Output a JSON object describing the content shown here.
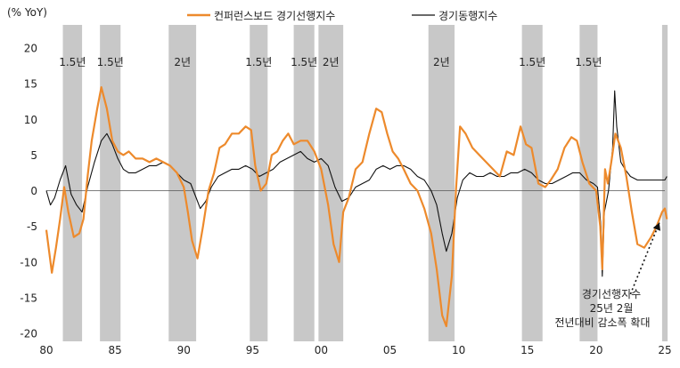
{
  "chart_data": {
    "type": "line",
    "unit_label": "(% YoY)",
    "ylim": [
      -20,
      20
    ],
    "yticks": [
      20,
      15,
      10,
      5,
      0,
      -5,
      -10,
      -15,
      -20
    ],
    "xlim": [
      1980,
      2025
    ],
    "xticks": [
      {
        "x": 1980,
        "label": "80"
      },
      {
        "x": 1985,
        "label": "85"
      },
      {
        "x": 1990,
        "label": "90"
      },
      {
        "x": 1995,
        "label": "95"
      },
      {
        "x": 2000,
        "label": "00"
      },
      {
        "x": 2005,
        "label": "05"
      },
      {
        "x": 2010,
        "label": "10"
      },
      {
        "x": 2015,
        "label": "15"
      },
      {
        "x": 2020,
        "label": "20"
      },
      {
        "x": 2025,
        "label": "25"
      }
    ],
    "recession_bands": [
      {
        "start": 1981.2,
        "end": 1982.6,
        "label": "1.5년"
      },
      {
        "start": 1983.9,
        "end": 1985.4,
        "label": "1.5년"
      },
      {
        "start": 1988.9,
        "end": 1990.9,
        "label": "2년"
      },
      {
        "start": 1994.8,
        "end": 1996.1,
        "label": "1.5년"
      },
      {
        "start": 1998.0,
        "end": 1999.5,
        "label": "1.5년"
      },
      {
        "start": 1999.8,
        "end": 2001.6,
        "label": "2년"
      },
      {
        "start": 2007.8,
        "end": 2009.7,
        "label": "2년"
      },
      {
        "start": 2014.6,
        "end": 2016.1,
        "label": "1.5년"
      },
      {
        "start": 2018.8,
        "end": 2020.1,
        "label": "1.5년"
      },
      {
        "start": 2024.8,
        "end": 2025.2,
        "label": ""
      }
    ],
    "series": [
      {
        "name": "컨퍼런스보드 경기선행지수",
        "color": "#ED8A2C",
        "points": [
          [
            1980.0,
            -5.5
          ],
          [
            1980.4,
            -11.5
          ],
          [
            1980.7,
            -8
          ],
          [
            1981.0,
            -4
          ],
          [
            1981.3,
            0.5
          ],
          [
            1981.6,
            -3
          ],
          [
            1982.0,
            -6.5
          ],
          [
            1982.4,
            -6
          ],
          [
            1982.7,
            -4
          ],
          [
            1983.0,
            2
          ],
          [
            1983.3,
            7
          ],
          [
            1983.7,
            11.5
          ],
          [
            1984.0,
            14.5
          ],
          [
            1984.4,
            11.5
          ],
          [
            1984.8,
            7
          ],
          [
            1985.2,
            5.5
          ],
          [
            1985.6,
            5
          ],
          [
            1986.0,
            5.5
          ],
          [
            1986.5,
            4.5
          ],
          [
            1987.0,
            4.5
          ],
          [
            1987.5,
            4
          ],
          [
            1988.0,
            4.5
          ],
          [
            1988.5,
            4
          ],
          [
            1989.0,
            3.5
          ],
          [
            1989.5,
            2.5
          ],
          [
            1990.0,
            0.5
          ],
          [
            1990.3,
            -3
          ],
          [
            1990.6,
            -7
          ],
          [
            1991.0,
            -9.5
          ],
          [
            1991.4,
            -5
          ],
          [
            1991.8,
            0
          ],
          [
            1992.2,
            2.5
          ],
          [
            1992.6,
            6
          ],
          [
            1993.0,
            6.5
          ],
          [
            1993.5,
            8
          ],
          [
            1994.0,
            8
          ],
          [
            1994.5,
            9
          ],
          [
            1994.9,
            8.5
          ],
          [
            1995.2,
            3.5
          ],
          [
            1995.6,
            0
          ],
          [
            1996.0,
            1
          ],
          [
            1996.4,
            5
          ],
          [
            1996.8,
            5.5
          ],
          [
            1997.2,
            7
          ],
          [
            1997.6,
            8
          ],
          [
            1998.0,
            6.5
          ],
          [
            1998.5,
            7
          ],
          [
            1999.0,
            7
          ],
          [
            1999.5,
            5.5
          ],
          [
            2000.0,
            3
          ],
          [
            2000.5,
            -2
          ],
          [
            2000.9,
            -7.5
          ],
          [
            2001.3,
            -10
          ],
          [
            2001.6,
            -3
          ],
          [
            2002.0,
            -1
          ],
          [
            2002.5,
            3
          ],
          [
            2003.0,
            4
          ],
          [
            2003.5,
            8
          ],
          [
            2004.0,
            11.5
          ],
          [
            2004.4,
            11
          ],
          [
            2004.8,
            8
          ],
          [
            2005.2,
            5.5
          ],
          [
            2005.6,
            4.5
          ],
          [
            2006.0,
            3
          ],
          [
            2006.5,
            1
          ],
          [
            2007.0,
            0
          ],
          [
            2007.5,
            -2.5
          ],
          [
            2008.0,
            -6
          ],
          [
            2008.4,
            -11
          ],
          [
            2008.8,
            -17.5
          ],
          [
            2009.1,
            -19
          ],
          [
            2009.5,
            -12
          ],
          [
            2009.8,
            0
          ],
          [
            2010.1,
            9
          ],
          [
            2010.5,
            8
          ],
          [
            2011.0,
            6
          ],
          [
            2011.5,
            5
          ],
          [
            2012.0,
            4
          ],
          [
            2012.5,
            3
          ],
          [
            2013.0,
            2
          ],
          [
            2013.5,
            5.5
          ],
          [
            2014.0,
            5
          ],
          [
            2014.5,
            9
          ],
          [
            2014.9,
            6.5
          ],
          [
            2015.3,
            6
          ],
          [
            2015.8,
            1
          ],
          [
            2016.3,
            0.5
          ],
          [
            2016.7,
            1.5
          ],
          [
            2017.2,
            3
          ],
          [
            2017.7,
            6
          ],
          [
            2018.2,
            7.5
          ],
          [
            2018.6,
            7
          ],
          [
            2019.0,
            4
          ],
          [
            2019.5,
            1
          ],
          [
            2020.0,
            0
          ],
          [
            2020.3,
            -5
          ],
          [
            2020.45,
            -11
          ],
          [
            2020.65,
            3
          ],
          [
            2020.85,
            1
          ],
          [
            2021.1,
            4
          ],
          [
            2021.4,
            8
          ],
          [
            2021.8,
            6
          ],
          [
            2022.2,
            2
          ],
          [
            2022.6,
            -3
          ],
          [
            2023.0,
            -7.5
          ],
          [
            2023.5,
            -8
          ],
          [
            2024.0,
            -6.5
          ],
          [
            2024.4,
            -5
          ],
          [
            2024.8,
            -3
          ],
          [
            2025.0,
            -2.5
          ],
          [
            2025.15,
            -4
          ]
        ]
      },
      {
        "name": "경기동행지수",
        "color": "#111111",
        "points": [
          [
            1980.0,
            0
          ],
          [
            1980.3,
            -2
          ],
          [
            1980.6,
            -1
          ],
          [
            1981.0,
            1.5
          ],
          [
            1981.4,
            3.5
          ],
          [
            1981.8,
            -0.5
          ],
          [
            1982.2,
            -2
          ],
          [
            1982.6,
            -3
          ],
          [
            1983.0,
            0.5
          ],
          [
            1983.5,
            4
          ],
          [
            1984.0,
            7
          ],
          [
            1984.4,
            8
          ],
          [
            1984.8,
            6.5
          ],
          [
            1985.2,
            4.5
          ],
          [
            1985.6,
            3
          ],
          [
            1986.0,
            2.5
          ],
          [
            1986.5,
            2.5
          ],
          [
            1987.0,
            3
          ],
          [
            1987.5,
            3.5
          ],
          [
            1988.0,
            3.5
          ],
          [
            1988.5,
            4
          ],
          [
            1989.0,
            3.5
          ],
          [
            1989.5,
            2.5
          ],
          [
            1990.0,
            1.5
          ],
          [
            1990.5,
            1
          ],
          [
            1990.9,
            -1
          ],
          [
            1991.2,
            -2.5
          ],
          [
            1991.6,
            -1.5
          ],
          [
            1992.0,
            0.5
          ],
          [
            1992.5,
            2
          ],
          [
            1993.0,
            2.5
          ],
          [
            1993.5,
            3
          ],
          [
            1994.0,
            3
          ],
          [
            1994.5,
            3.5
          ],
          [
            1995.0,
            3
          ],
          [
            1995.5,
            2
          ],
          [
            1996.0,
            2.5
          ],
          [
            1996.5,
            3
          ],
          [
            1997.0,
            4
          ],
          [
            1997.5,
            4.5
          ],
          [
            1998.0,
            5
          ],
          [
            1998.5,
            5.5
          ],
          [
            1999.0,
            4.5
          ],
          [
            1999.5,
            4
          ],
          [
            2000.0,
            4.5
          ],
          [
            2000.5,
            3.5
          ],
          [
            2001.0,
            0.5
          ],
          [
            2001.5,
            -1.5
          ],
          [
            2002.0,
            -1
          ],
          [
            2002.5,
            0.5
          ],
          [
            2003.0,
            1
          ],
          [
            2003.5,
            1.5
          ],
          [
            2004.0,
            3
          ],
          [
            2004.5,
            3.5
          ],
          [
            2005.0,
            3
          ],
          [
            2005.5,
            3.5
          ],
          [
            2006.0,
            3.5
          ],
          [
            2006.5,
            3
          ],
          [
            2007.0,
            2
          ],
          [
            2007.5,
            1.5
          ],
          [
            2008.0,
            0
          ],
          [
            2008.4,
            -2
          ],
          [
            2008.8,
            -6
          ],
          [
            2009.1,
            -8.5
          ],
          [
            2009.5,
            -6
          ],
          [
            2009.9,
            -1
          ],
          [
            2010.3,
            1.5
          ],
          [
            2010.8,
            2.5
          ],
          [
            2011.3,
            2
          ],
          [
            2011.8,
            2
          ],
          [
            2012.3,
            2.5
          ],
          [
            2012.8,
            2
          ],
          [
            2013.3,
            2
          ],
          [
            2013.8,
            2.5
          ],
          [
            2014.3,
            2.5
          ],
          [
            2014.8,
            3
          ],
          [
            2015.3,
            2.5
          ],
          [
            2015.8,
            1.5
          ],
          [
            2016.3,
            1
          ],
          [
            2016.8,
            1
          ],
          [
            2017.3,
            1.5
          ],
          [
            2017.8,
            2
          ],
          [
            2018.3,
            2.5
          ],
          [
            2018.8,
            2.5
          ],
          [
            2019.3,
            1.5
          ],
          [
            2019.8,
            1
          ],
          [
            2020.1,
            0.5
          ],
          [
            2020.35,
            -5
          ],
          [
            2020.45,
            -12
          ],
          [
            2020.6,
            -3
          ],
          [
            2020.9,
            0
          ],
          [
            2021.2,
            6
          ],
          [
            2021.35,
            14
          ],
          [
            2021.5,
            9
          ],
          [
            2021.8,
            4
          ],
          [
            2022.1,
            3
          ],
          [
            2022.5,
            2
          ],
          [
            2023.0,
            1.5
          ],
          [
            2023.5,
            1.5
          ],
          [
            2024.0,
            1.5
          ],
          [
            2024.5,
            1.5
          ],
          [
            2025.0,
            1.5
          ],
          [
            2025.15,
            2
          ]
        ]
      }
    ],
    "annotation": {
      "lines": [
        "경기선행지수",
        "25년 2월",
        "전년대비 감소폭 확대"
      ],
      "arrow_from": [
        2022.5,
        -14.5
      ],
      "arrow_to": [
        2024.6,
        -4.5
      ]
    }
  }
}
